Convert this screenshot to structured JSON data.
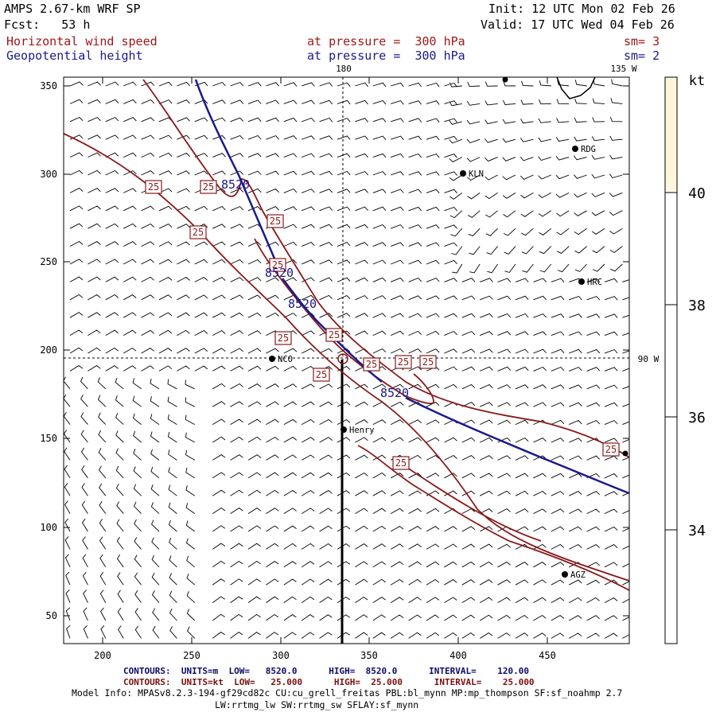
{
  "header": {
    "model": "AMPS 2.67-km WRF SP",
    "forecast": "Fcst:   53 h",
    "init": "Init: 12 UTC Mon 02 Feb 26",
    "valid": "Valid: 17 UTC Wed 04 Feb 26",
    "field1_name": "Horizontal wind speed",
    "field1_level": "at pressure =  300 hPa",
    "field1_sm": "sm= 3",
    "field2_name": "Geopotential height",
    "field2_level": "at pressure =  300 hPa",
    "field2_sm": "sm= 2"
  },
  "map": {
    "x_ticks": [
      "200",
      "250",
      "300",
      "350",
      "400",
      "450"
    ],
    "y_ticks": [
      "50",
      "100",
      "150",
      "200",
      "250",
      "300",
      "350"
    ],
    "meridian_180": "180",
    "meridian_135w": "135 W",
    "meridian_90w": "90 W",
    "stations": [
      {
        "id": "RDG",
        "label": "RDG"
      },
      {
        "id": "KLN",
        "label": "KLN"
      },
      {
        "id": "HRC",
        "label": "HRC"
      },
      {
        "id": "NCO",
        "label": "NCO"
      },
      {
        "id": "Henry",
        "label": "Henry"
      },
      {
        "id": "AGZ",
        "label": "AGZ"
      }
    ],
    "height_labels": [
      "8520",
      "8520",
      "8520",
      "8520"
    ],
    "speed_labels": [
      "25",
      "25",
      "25",
      "25",
      "25",
      "25",
      "25",
      "25",
      "25",
      "25",
      "25",
      "25",
      "25"
    ],
    "colors": {
      "height_contour": "#1a1a8c",
      "speed_contour": "#8b1a1a",
      "barbs": "#000000"
    }
  },
  "colorbar": {
    "unit": "kt",
    "ticks": [
      "40",
      "38",
      "36",
      "34"
    ],
    "fill_color": "#fbf6dc"
  },
  "footer": {
    "contours_height": "CONTOURS:  UNITS=m  LOW=   8520.0      HIGH=  8520.0      INTERVAL=    120.00",
    "contours_speed": "CONTOURS:  UNITS=kt  LOW=   25.000      HIGH=  25.000      INTERVAL=    25.000",
    "model_info": "Model Info: MPASv8.2.3-194-gf29cd82c CU:cu_grell_freitas PBL:bl_mynn MP:mp_thompson SF:sf_noahmp 2.7",
    "model_info2": "LW:rrtmg_lw SW:rrtmg_sw SFLAY:sf_mynn"
  }
}
